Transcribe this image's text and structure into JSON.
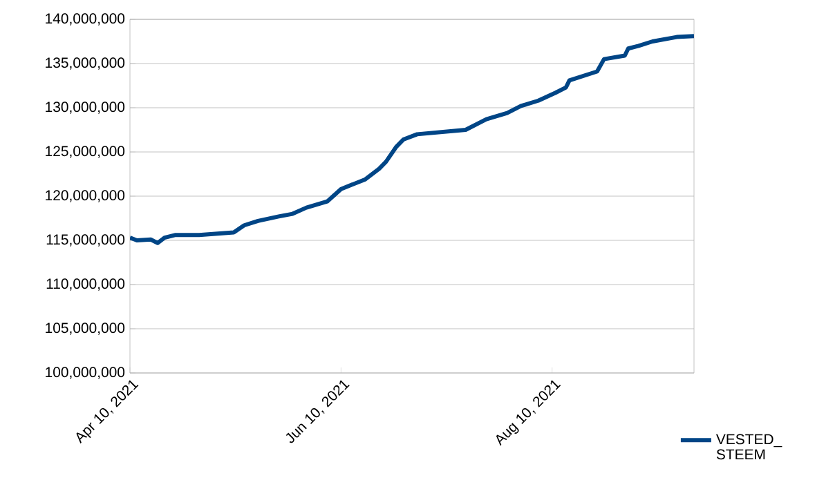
{
  "chart_data": {
    "type": "line",
    "x": [
      "2021-04-10",
      "2021-04-12",
      "2021-04-16",
      "2021-04-18",
      "2021-04-20",
      "2021-04-23",
      "2021-04-30",
      "2021-05-10",
      "2021-05-13",
      "2021-05-17",
      "2021-05-23",
      "2021-05-27",
      "2021-05-31",
      "2021-06-06",
      "2021-06-10",
      "2021-06-17",
      "2021-06-21",
      "2021-06-23",
      "2021-06-26",
      "2021-06-28",
      "2021-07-02",
      "2021-07-16",
      "2021-07-22",
      "2021-07-28",
      "2021-08-01",
      "2021-08-06",
      "2021-08-11",
      "2021-08-14",
      "2021-08-15",
      "2021-08-23",
      "2021-08-25",
      "2021-08-31",
      "2021-09-01",
      "2021-09-04",
      "2021-09-08",
      "2021-09-15",
      "2021-09-20"
    ],
    "series": [
      {
        "name": "VESTED_STEEM",
        "color": "#004586",
        "values": [
          115300000,
          115000000,
          115100000,
          114700000,
          115300000,
          115600000,
          115600000,
          115900000,
          116700000,
          117200000,
          117700000,
          118000000,
          118700000,
          119400000,
          120800000,
          121900000,
          123100000,
          123900000,
          125600000,
          126400000,
          127000000,
          127500000,
          128700000,
          129400000,
          130200000,
          130800000,
          131700000,
          132300000,
          133100000,
          134100000,
          135500000,
          135900000,
          136700000,
          137000000,
          137500000,
          138000000,
          138100000
        ]
      }
    ],
    "xlim": [
      "2021-04-10",
      "2021-09-20"
    ],
    "xticks": [
      {
        "value": "2021-04-10",
        "label": "Apr 10, 2021"
      },
      {
        "value": "2021-06-10",
        "label": "Jun 10, 2021"
      },
      {
        "value": "2021-08-10",
        "label": "Aug 10, 2021"
      }
    ],
    "ylim": [
      100000000,
      140000000
    ],
    "yticks": [
      {
        "value": 100000000,
        "label": "100,000,000"
      },
      {
        "value": 105000000,
        "label": "105,000,000"
      },
      {
        "value": 110000000,
        "label": "110,000,000"
      },
      {
        "value": 115000000,
        "label": "115,000,000"
      },
      {
        "value": 120000000,
        "label": "120,000,000"
      },
      {
        "value": 125000000,
        "label": "125,000,000"
      },
      {
        "value": 130000000,
        "label": "130,000,000"
      },
      {
        "value": 135000000,
        "label": "135,000,000"
      },
      {
        "value": 140000000,
        "label": "140,000,000"
      }
    ],
    "grid": "y",
    "legend": "right",
    "marker": "none",
    "line_style": "solid"
  }
}
